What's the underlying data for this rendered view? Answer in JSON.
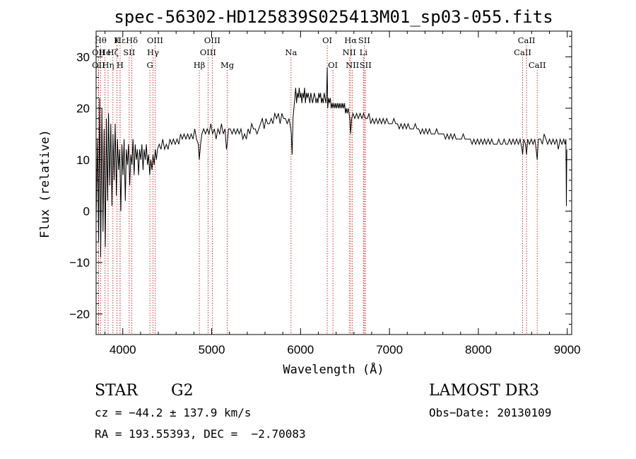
{
  "chart_data": {
    "type": "line",
    "title": "spec-56302-HD125839S025413M01_sp03-055.fits",
    "xlabel": "Wavelength (Å)",
    "ylabel": "Flux (relative)",
    "xlim": [
      3700,
      9050
    ],
    "ylim": [
      -24,
      35
    ],
    "xticks": [
      4000,
      5000,
      6000,
      7000,
      8000,
      9000
    ],
    "yticks": [
      -20,
      -10,
      0,
      10,
      20,
      30
    ],
    "grid": false,
    "line_color": "#000000",
    "marker_color": "#cc0000",
    "spectrum_points": [
      [
        3700,
        -2
      ],
      [
        3715,
        14
      ],
      [
        3728,
        -6
      ],
      [
        3740,
        22
      ],
      [
        3752,
        -9
      ],
      [
        3765,
        20
      ],
      [
        3778,
        -4
      ],
      [
        3790,
        16
      ],
      [
        3803,
        -7
      ],
      [
        3815,
        18
      ],
      [
        3828,
        2
      ],
      [
        3840,
        19
      ],
      [
        3853,
        5
      ],
      [
        3865,
        17
      ],
      [
        3878,
        1
      ],
      [
        3890,
        15
      ],
      [
        3903,
        6
      ],
      [
        3915,
        17
      ],
      [
        3928,
        3
      ],
      [
        3940,
        14
      ],
      [
        3953,
        8
      ],
      [
        3965,
        12
      ],
      [
        3978,
        0
      ],
      [
        3990,
        13
      ],
      [
        4003,
        7
      ],
      [
        4015,
        14
      ],
      [
        4028,
        2
      ],
      [
        4040,
        12
      ],
      [
        4053,
        9
      ],
      [
        4065,
        13
      ],
      [
        4078,
        5
      ],
      [
        4090,
        11
      ],
      [
        4103,
        9
      ],
      [
        4115,
        14
      ],
      [
        4128,
        7
      ],
      [
        4140,
        13
      ],
      [
        4153,
        10
      ],
      [
        4165,
        12
      ],
      [
        4178,
        7
      ],
      [
        4190,
        12
      ],
      [
        4203,
        10
      ],
      [
        4215,
        13
      ],
      [
        4228,
        8
      ],
      [
        4240,
        12
      ],
      [
        4253,
        10
      ],
      [
        4265,
        13
      ],
      [
        4278,
        9
      ],
      [
        4290,
        11
      ],
      [
        4303,
        7
      ],
      [
        4315,
        10
      ],
      [
        4328,
        8
      ],
      [
        4340,
        11
      ],
      [
        4353,
        9
      ],
      [
        4365,
        12
      ],
      [
        4378,
        10
      ],
      [
        4390,
        12
      ],
      [
        4410,
        13
      ],
      [
        4430,
        12
      ],
      [
        4450,
        14
      ],
      [
        4470,
        12
      ],
      [
        4490,
        13
      ],
      [
        4510,
        12
      ],
      [
        4530,
        14
      ],
      [
        4550,
        13
      ],
      [
        4570,
        14
      ],
      [
        4590,
        13
      ],
      [
        4610,
        14
      ],
      [
        4630,
        13
      ],
      [
        4650,
        15
      ],
      [
        4670,
        14
      ],
      [
        4690,
        15
      ],
      [
        4710,
        14
      ],
      [
        4730,
        15
      ],
      [
        4750,
        14
      ],
      [
        4770,
        15
      ],
      [
        4790,
        14
      ],
      [
        4810,
        16
      ],
      [
        4830,
        14
      ],
      [
        4850,
        13
      ],
      [
        4861,
        10
      ],
      [
        4875,
        13
      ],
      [
        4890,
        15
      ],
      [
        4910,
        16
      ],
      [
        4930,
        15
      ],
      [
        4950,
        16
      ],
      [
        4970,
        15
      ],
      [
        4990,
        17
      ],
      [
        5010,
        15
      ],
      [
        5030,
        16
      ],
      [
        5050,
        14
      ],
      [
        5070,
        16
      ],
      [
        5090,
        15
      ],
      [
        5110,
        17
      ],
      [
        5130,
        15
      ],
      [
        5150,
        16
      ],
      [
        5167,
        12
      ],
      [
        5175,
        13
      ],
      [
        5190,
        16
      ],
      [
        5210,
        16
      ],
      [
        5230,
        15
      ],
      [
        5250,
        16
      ],
      [
        5270,
        15
      ],
      [
        5290,
        16
      ],
      [
        5310,
        15
      ],
      [
        5330,
        16
      ],
      [
        5350,
        14
      ],
      [
        5370,
        15
      ],
      [
        5390,
        14
      ],
      [
        5410,
        16
      ],
      [
        5430,
        15
      ],
      [
        5450,
        17
      ],
      [
        5470,
        16
      ],
      [
        5490,
        16
      ],
      [
        5510,
        15
      ],
      [
        5530,
        16
      ],
      [
        5550,
        17
      ],
      [
        5570,
        18
      ],
      [
        5590,
        16
      ],
      [
        5610,
        18
      ],
      [
        5630,
        17
      ],
      [
        5650,
        17
      ],
      [
        5670,
        18
      ],
      [
        5690,
        17
      ],
      [
        5710,
        19
      ],
      [
        5730,
        18
      ],
      [
        5750,
        19
      ],
      [
        5770,
        17
      ],
      [
        5790,
        19
      ],
      [
        5810,
        18
      ],
      [
        5830,
        18
      ],
      [
        5850,
        17
      ],
      [
        5870,
        18
      ],
      [
        5890,
        16
      ],
      [
        5896,
        15
      ],
      [
        5905,
        11
      ],
      [
        5915,
        18
      ],
      [
        5925,
        20
      ],
      [
        5935,
        22
      ],
      [
        5945,
        24
      ],
      [
        5955,
        21
      ],
      [
        5965,
        23
      ],
      [
        5975,
        22
      ],
      [
        5985,
        24
      ],
      [
        5995,
        22
      ],
      [
        6005,
        23
      ],
      [
        6015,
        21
      ],
      [
        6025,
        23
      ],
      [
        6035,
        22
      ],
      [
        6045,
        24
      ],
      [
        6055,
        21
      ],
      [
        6065,
        23
      ],
      [
        6075,
        22
      ],
      [
        6085,
        23
      ],
      [
        6095,
        22
      ],
      [
        6105,
        21
      ],
      [
        6115,
        23
      ],
      [
        6125,
        22
      ],
      [
        6135,
        21
      ],
      [
        6145,
        22
      ],
      [
        6155,
        23
      ],
      [
        6165,
        22
      ],
      [
        6175,
        21
      ],
      [
        6185,
        22
      ],
      [
        6195,
        21
      ],
      [
        6205,
        23
      ],
      [
        6215,
        22
      ],
      [
        6225,
        23
      ],
      [
        6235,
        21
      ],
      [
        6245,
        22
      ],
      [
        6255,
        21
      ],
      [
        6265,
        23
      ],
      [
        6275,
        22
      ],
      [
        6285,
        21
      ],
      [
        6295,
        24
      ],
      [
        6300,
        28
      ],
      [
        6305,
        20
      ],
      [
        6315,
        22
      ],
      [
        6325,
        21
      ],
      [
        6335,
        22
      ],
      [
        6345,
        20
      ],
      [
        6355,
        21
      ],
      [
        6365,
        20
      ],
      [
        6375,
        21
      ],
      [
        6385,
        20
      ],
      [
        6395,
        21
      ],
      [
        6405,
        20
      ],
      [
        6415,
        21
      ],
      [
        6425,
        20
      ],
      [
        6435,
        21
      ],
      [
        6445,
        20
      ],
      [
        6455,
        21
      ],
      [
        6465,
        20
      ],
      [
        6475,
        21
      ],
      [
        6485,
        20
      ],
      [
        6495,
        21
      ],
      [
        6505,
        19
      ],
      [
        6515,
        20
      ],
      [
        6525,
        19
      ],
      [
        6535,
        20
      ],
      [
        6545,
        19
      ],
      [
        6555,
        18
      ],
      [
        6563,
        15
      ],
      [
        6575,
        18
      ],
      [
        6590,
        19
      ],
      [
        6610,
        18
      ],
      [
        6630,
        19
      ],
      [
        6650,
        18
      ],
      [
        6670,
        19
      ],
      [
        6690,
        18
      ],
      [
        6710,
        19
      ],
      [
        6730,
        18
      ],
      [
        6750,
        18
      ],
      [
        6770,
        19
      ],
      [
        6790,
        17
      ],
      [
        6810,
        18
      ],
      [
        6830,
        17
      ],
      [
        6850,
        18
      ],
      [
        6870,
        17
      ],
      [
        6890,
        18
      ],
      [
        6910,
        17
      ],
      [
        6930,
        18
      ],
      [
        6950,
        17
      ],
      [
        6970,
        18
      ],
      [
        6990,
        17
      ],
      [
        7010,
        17
      ],
      [
        7030,
        17
      ],
      [
        7050,
        18
      ],
      [
        7070,
        17
      ],
      [
        7090,
        17
      ],
      [
        7110,
        16
      ],
      [
        7130,
        17
      ],
      [
        7150,
        16
      ],
      [
        7170,
        17
      ],
      [
        7190,
        16
      ],
      [
        7210,
        17
      ],
      [
        7230,
        16
      ],
      [
        7250,
        16
      ],
      [
        7270,
        16
      ],
      [
        7290,
        17
      ],
      [
        7310,
        16
      ],
      [
        7330,
        16
      ],
      [
        7350,
        15
      ],
      [
        7370,
        16
      ],
      [
        7390,
        15
      ],
      [
        7410,
        16
      ],
      [
        7430,
        15
      ],
      [
        7450,
        16
      ],
      [
        7470,
        15
      ],
      [
        7490,
        15
      ],
      [
        7510,
        15
      ],
      [
        7530,
        16
      ],
      [
        7550,
        15
      ],
      [
        7570,
        15
      ],
      [
        7590,
        15
      ],
      [
        7610,
        15
      ],
      [
        7630,
        14
      ],
      [
        7650,
        15
      ],
      [
        7670,
        14
      ],
      [
        7690,
        15
      ],
      [
        7710,
        14
      ],
      [
        7730,
        15
      ],
      [
        7750,
        14
      ],
      [
        7770,
        14
      ],
      [
        7790,
        14
      ],
      [
        7810,
        14
      ],
      [
        7830,
        15
      ],
      [
        7850,
        14
      ],
      [
        7870,
        14
      ],
      [
        7890,
        14
      ],
      [
        7910,
        14
      ],
      [
        7930,
        13
      ],
      [
        7950,
        14
      ],
      [
        7970,
        13
      ],
      [
        7990,
        14
      ],
      [
        8010,
        13
      ],
      [
        8030,
        14
      ],
      [
        8050,
        13
      ],
      [
        8070,
        14
      ],
      [
        8090,
        13
      ],
      [
        8110,
        14
      ],
      [
        8130,
        13
      ],
      [
        8150,
        14
      ],
      [
        8170,
        13
      ],
      [
        8190,
        13
      ],
      [
        8210,
        13
      ],
      [
        8230,
        14
      ],
      [
        8250,
        13
      ],
      [
        8270,
        13
      ],
      [
        8290,
        14
      ],
      [
        8310,
        13
      ],
      [
        8330,
        13
      ],
      [
        8350,
        14
      ],
      [
        8370,
        13
      ],
      [
        8390,
        14
      ],
      [
        8410,
        13
      ],
      [
        8430,
        14
      ],
      [
        8450,
        13
      ],
      [
        8470,
        14
      ],
      [
        8490,
        12
      ],
      [
        8498,
        11
      ],
      [
        8510,
        14
      ],
      [
        8530,
        13
      ],
      [
        8542,
        11
      ],
      [
        8555,
        14
      ],
      [
        8575,
        13
      ],
      [
        8595,
        14
      ],
      [
        8615,
        13
      ],
      [
        8635,
        14
      ],
      [
        8650,
        12
      ],
      [
        8662,
        10
      ],
      [
        8675,
        14
      ],
      [
        8700,
        14
      ],
      [
        8720,
        13
      ],
      [
        8740,
        15
      ],
      [
        8760,
        14
      ],
      [
        8780,
        13
      ],
      [
        8800,
        14
      ],
      [
        8820,
        13
      ],
      [
        8840,
        14
      ],
      [
        8860,
        13
      ],
      [
        8880,
        14
      ],
      [
        8900,
        12
      ],
      [
        8920,
        14
      ],
      [
        8940,
        13
      ],
      [
        8960,
        14
      ],
      [
        8975,
        13
      ],
      [
        8985,
        14
      ],
      [
        8990,
        1
      ],
      [
        8995,
        12
      ]
    ],
    "line_markers": [
      {
        "wl": 3750,
        "label": "Hθ",
        "row": 0
      },
      {
        "wl": 3727,
        "label": "OII",
        "row": 1
      },
      {
        "wl": 3727,
        "label": "OII",
        "row": 2
      },
      {
        "wl": 3799,
        "label": "He",
        "row": 1
      },
      {
        "wl": 3835,
        "label": "Hη",
        "row": 2
      },
      {
        "wl": 3889,
        "label": "Hζ",
        "row": 1
      },
      {
        "wl": 3934,
        "label": "K",
        "row": 0
      },
      {
        "wl": 3969,
        "label": "H",
        "row": 2
      },
      {
        "wl": 3970,
        "label": "Hε",
        "row": 0
      },
      {
        "wl": 4072,
        "label": "SII",
        "row": 1
      },
      {
        "wl": 4102,
        "label": "Hδ",
        "row": 0
      },
      {
        "wl": 4305,
        "label": "G",
        "row": 2
      },
      {
        "wl": 4340,
        "label": "Hγ",
        "row": 1
      },
      {
        "wl": 4363,
        "label": "OIII",
        "row": 0
      },
      {
        "wl": 4861,
        "label": "Hβ",
        "row": 2
      },
      {
        "wl": 4959,
        "label": "OIII",
        "row": 1
      },
      {
        "wl": 5007,
        "label": "OIII",
        "row": 0
      },
      {
        "wl": 5175,
        "label": "Mg",
        "row": 2
      },
      {
        "wl": 5893,
        "label": "Na",
        "row": 1
      },
      {
        "wl": 6300,
        "label": "OI",
        "row": 0
      },
      {
        "wl": 6364,
        "label": "OI",
        "row": 2
      },
      {
        "wl": 6548,
        "label": "NII",
        "row": 1
      },
      {
        "wl": 6563,
        "label": "Hα",
        "row": 0
      },
      {
        "wl": 6583,
        "label": "NII",
        "row": 2
      },
      {
        "wl": 6707,
        "label": "Li",
        "row": 1
      },
      {
        "wl": 6716,
        "label": "SII",
        "row": 0
      },
      {
        "wl": 6731,
        "label": "SII",
        "row": 2
      },
      {
        "wl": 8498,
        "label": "CaII",
        "row": 1
      },
      {
        "wl": 8542,
        "label": "CaII",
        "row": 0
      },
      {
        "wl": 8662,
        "label": "CaII",
        "row": 2
      }
    ]
  },
  "info": {
    "object_class": "STAR",
    "subclass": "G2",
    "cz_line": "cz = −44.2 ± 137.9 km/s",
    "radec_line": "RA = 193.55393, DEC =  −2.70083",
    "survey": "LAMOST DR3",
    "obs_date_line": "Obs−Date: 20130109"
  }
}
